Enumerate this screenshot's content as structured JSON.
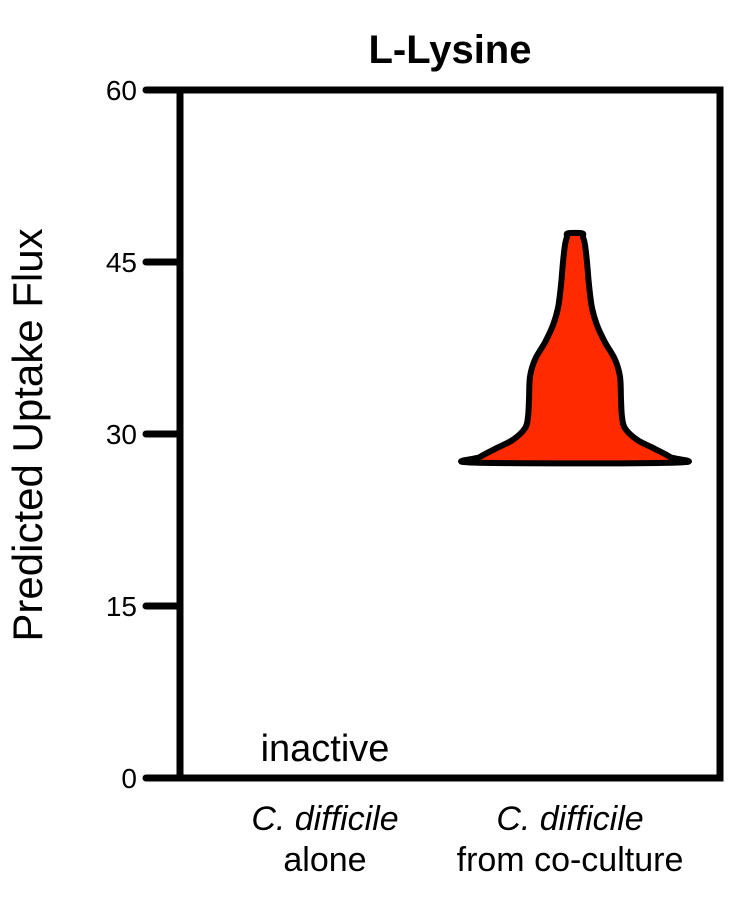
{
  "chart_data": {
    "type": "violin",
    "title": "L-Lysine",
    "ylabel": "Predicted Uptake Flux",
    "xlabel": "",
    "ylim": [
      0,
      60
    ],
    "yticks": [
      0,
      15,
      30,
      45,
      60
    ],
    "ytick_labels": [
      "0",
      "15",
      "30",
      "45",
      "60"
    ],
    "grid": false,
    "categories": [
      {
        "line1": "C. difficile",
        "line2": "alone"
      },
      {
        "line1": "C. difficile",
        "line2": "from co-culture"
      }
    ],
    "series": [
      {
        "category_index": 0,
        "status": "inactive",
        "annotation": "inactive",
        "profile": []
      },
      {
        "category_index": 1,
        "color": "#ff2a00",
        "min": 27.5,
        "max": 47.5,
        "profile": [
          [
            27.5,
            1.0
          ],
          [
            28.0,
            0.95
          ],
          [
            28.7,
            0.8
          ],
          [
            29.5,
            0.62
          ],
          [
            30.5,
            0.5
          ],
          [
            31.5,
            0.47
          ],
          [
            33.0,
            0.46
          ],
          [
            35.0,
            0.45
          ],
          [
            36.5,
            0.4
          ],
          [
            38.0,
            0.3
          ],
          [
            39.5,
            0.22
          ],
          [
            41.0,
            0.17
          ],
          [
            43.0,
            0.14
          ],
          [
            45.0,
            0.12
          ],
          [
            46.5,
            0.1
          ],
          [
            47.2,
            0.08
          ],
          [
            47.5,
            0.07
          ]
        ]
      }
    ]
  }
}
